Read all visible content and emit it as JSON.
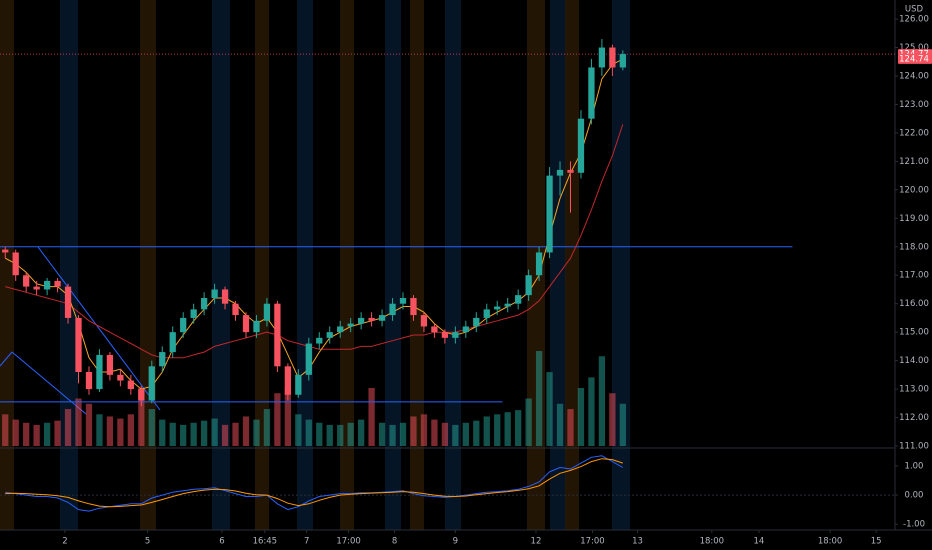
{
  "chart_data": {
    "type": "candlestick",
    "currency": "USD",
    "up_color": "#26a69a",
    "down_color": "#f7525f",
    "open": [
      117.9,
      117.8,
      117.0,
      116.6,
      116.5,
      116.8,
      116.6,
      115.5,
      113.6,
      113.0,
      114.2,
      113.5,
      113.3,
      113.0,
      112.6,
      113.8,
      114.3,
      115.0,
      115.5,
      115.8,
      116.2,
      116.5,
      116.0,
      115.6,
      115.0,
      115.4,
      116.0,
      113.8,
      112.8,
      113.5,
      114.6,
      114.8,
      115.0,
      115.2,
      115.3,
      115.5,
      115.4,
      115.6,
      116.0,
      116.2,
      115.6,
      115.2,
      115.0,
      114.8,
      115.0,
      115.2,
      115.5,
      115.8,
      115.9,
      116.0,
      116.3,
      117.0,
      117.8,
      120.5,
      120.7,
      120.6,
      122.5,
      124.3,
      125.0,
      124.3
    ],
    "high": [
      118.0,
      117.9,
      117.1,
      116.8,
      116.9,
      116.9,
      116.7,
      115.6,
      113.8,
      114.4,
      114.3,
      113.7,
      113.5,
      113.1,
      114.0,
      114.5,
      115.2,
      115.7,
      116.0,
      116.4,
      116.7,
      116.6,
      116.1,
      115.7,
      115.6,
      116.2,
      116.1,
      113.9,
      113.7,
      114.8,
      115.0,
      115.2,
      115.4,
      115.5,
      115.7,
      115.7,
      115.8,
      116.2,
      116.4,
      116.3,
      115.7,
      115.3,
      115.1,
      115.2,
      115.4,
      115.7,
      116.0,
      116.1,
      116.2,
      116.5,
      117.2,
      118.0,
      120.8,
      121.0,
      121.0,
      122.8,
      124.6,
      125.3,
      125.1,
      124.9
    ],
    "low": [
      117.6,
      116.8,
      116.4,
      116.3,
      116.3,
      116.4,
      115.3,
      113.2,
      112.8,
      112.9,
      113.3,
      113.1,
      112.8,
      112.4,
      112.5,
      113.6,
      114.1,
      114.8,
      115.3,
      115.6,
      116.0,
      115.8,
      115.4,
      114.8,
      114.8,
      115.2,
      113.6,
      112.6,
      112.7,
      113.3,
      114.4,
      114.6,
      114.8,
      115.0,
      115.1,
      115.2,
      115.2,
      115.4,
      115.8,
      115.4,
      115.0,
      114.8,
      114.6,
      114.6,
      114.8,
      115.0,
      115.3,
      115.6,
      115.7,
      115.8,
      116.1,
      116.8,
      117.6,
      119.8,
      119.2,
      120.4,
      122.3,
      124.0,
      124.0,
      124.2
    ],
    "close": [
      117.8,
      117.0,
      116.6,
      116.5,
      116.8,
      116.6,
      115.5,
      113.6,
      113.0,
      114.2,
      113.5,
      113.3,
      113.0,
      112.6,
      113.8,
      114.3,
      115.0,
      115.5,
      115.8,
      116.2,
      116.5,
      116.0,
      115.6,
      115.0,
      115.4,
      116.0,
      113.8,
      112.8,
      113.5,
      114.6,
      114.8,
      115.0,
      115.2,
      115.3,
      115.5,
      115.4,
      115.6,
      116.0,
      116.2,
      115.6,
      115.2,
      115.0,
      114.8,
      115.0,
      115.2,
      115.5,
      115.8,
      115.9,
      116.0,
      116.3,
      117.0,
      117.8,
      120.5,
      120.7,
      120.6,
      122.5,
      124.3,
      125.0,
      124.3,
      124.77
    ],
    "volume": [
      30,
      25,
      22,
      20,
      22,
      24,
      35,
      45,
      40,
      30,
      28,
      26,
      30,
      55,
      35,
      25,
      22,
      20,
      22,
      24,
      26,
      20,
      22,
      28,
      25,
      35,
      50,
      55,
      30,
      25,
      22,
      20,
      20,
      22,
      25,
      55,
      22,
      20,
      22,
      28,
      30,
      25,
      22,
      20,
      22,
      24,
      28,
      30,
      32,
      34,
      45,
      90,
      70,
      40,
      35,
      55,
      65,
      85,
      50,
      40
    ],
    "ma_fast": {
      "color": "#f5a623",
      "values": [
        117.6,
        117.4,
        117.1,
        116.7,
        116.6,
        116.6,
        116.3,
        115.3,
        114.1,
        113.6,
        113.6,
        113.7,
        113.3,
        113.0,
        113.1,
        113.6,
        114.4,
        114.9,
        115.4,
        115.8,
        116.2,
        116.2,
        116.0,
        115.6,
        115.3,
        115.5,
        115.0,
        114.2,
        113.4,
        113.7,
        114.3,
        114.8,
        115.0,
        115.2,
        115.3,
        115.4,
        115.5,
        115.7,
        115.9,
        115.9,
        115.7,
        115.3,
        115.0,
        114.9,
        115.0,
        115.2,
        115.5,
        115.7,
        115.9,
        116.1,
        116.4,
        117.0,
        118.4,
        119.7,
        120.6,
        121.3,
        122.5,
        123.9,
        124.4,
        124.6
      ]
    },
    "ma_slow": {
      "color": "#c0282c",
      "values": [
        116.6,
        116.5,
        116.4,
        116.3,
        116.2,
        116.1,
        116.0,
        115.7,
        115.4,
        115.2,
        115.0,
        114.8,
        114.6,
        114.4,
        114.2,
        114.1,
        114.1,
        114.1,
        114.2,
        114.3,
        114.5,
        114.6,
        114.7,
        114.8,
        114.9,
        115.0,
        114.9,
        114.7,
        114.6,
        114.5,
        114.4,
        114.4,
        114.4,
        114.4,
        114.5,
        114.5,
        114.6,
        114.7,
        114.8,
        114.9,
        114.9,
        115.0,
        115.0,
        115.0,
        115.1,
        115.2,
        115.3,
        115.4,
        115.5,
        115.6,
        115.8,
        116.1,
        116.6,
        117.1,
        117.6,
        118.4,
        119.3,
        120.3,
        121.2,
        122.3
      ]
    },
    "levels": [
      {
        "value": 118,
        "end": 75.2,
        "color": "#2962ff"
      },
      {
        "value": 112.55,
        "end": 47.5,
        "color": "#2962ff"
      }
    ],
    "xlim": [
      -0.5,
      85
    ],
    "xticks": [
      {
        "value": 5.7,
        "label": "2"
      },
      {
        "value": 13.6,
        "label": "5"
      },
      {
        "value": 20.7,
        "label": "6"
      },
      {
        "value": 24.8,
        "label": "16:45"
      },
      {
        "value": 28.8,
        "label": "7"
      },
      {
        "value": 32.8,
        "label": "17:00"
      },
      {
        "value": 37.2,
        "label": "8"
      },
      {
        "value": 43,
        "label": "9"
      },
      {
        "value": 50.7,
        "label": "12"
      },
      {
        "value": 56.1,
        "label": "17:00"
      },
      {
        "value": 60.4,
        "label": "13"
      },
      {
        "value": 67.5,
        "label": "18:00"
      },
      {
        "value": 72,
        "label": "14"
      },
      {
        "value": 78.8,
        "label": "18:00"
      },
      {
        "value": 83.2,
        "label": "15"
      }
    ],
    "ylim": [
      110.93,
      126.67
    ],
    "yticks": [
      {
        "value": 111,
        "label": "111.00"
      },
      {
        "value": 112,
        "label": "112.00"
      },
      {
        "value": 113,
        "label": "113.00"
      },
      {
        "value": 114,
        "label": "114.00"
      },
      {
        "value": 115,
        "label": "115.00"
      },
      {
        "value": 116,
        "label": "116.00"
      },
      {
        "value": 117,
        "label": "117.00"
      },
      {
        "value": 118,
        "label": "118.00"
      },
      {
        "value": 119,
        "label": "119.00"
      },
      {
        "value": 120,
        "label": "120.00"
      },
      {
        "value": 121,
        "label": "121.00"
      },
      {
        "value": 122,
        "label": "122.00"
      },
      {
        "value": 123,
        "label": "123.00"
      },
      {
        "value": 124,
        "label": "124.00"
      },
      {
        "value": 125,
        "label": "125.00"
      },
      {
        "value": 126,
        "label": "126.00"
      }
    ],
    "price_labels": [
      {
        "value": 124.77,
        "label": "124.77"
      },
      {
        "value": 124.74,
        "label": "124.74"
      }
    ],
    "indicator": {
      "type": "macd",
      "ylim": [
        -1.2,
        1.55
      ],
      "yticks": [
        {
          "value": -1,
          "label": "-1.00"
        },
        {
          "value": 0,
          "label": "0.00"
        },
        {
          "value": 1,
          "label": "1.00"
        }
      ],
      "macd": {
        "color": "#2962ff",
        "values": [
          0.1,
          0.05,
          0.0,
          -0.05,
          -0.05,
          -0.1,
          -0.25,
          -0.5,
          -0.55,
          -0.45,
          -0.4,
          -0.35,
          -0.3,
          -0.3,
          -0.1,
          0.0,
          0.1,
          0.15,
          0.2,
          0.22,
          0.25,
          0.15,
          0.05,
          -0.05,
          -0.05,
          0.0,
          -0.3,
          -0.5,
          -0.4,
          -0.2,
          -0.05,
          0.0,
          0.05,
          0.05,
          0.08,
          0.08,
          0.1,
          0.12,
          0.15,
          0.05,
          -0.02,
          -0.05,
          -0.08,
          -0.05,
          0.0,
          0.05,
          0.1,
          0.12,
          0.15,
          0.2,
          0.3,
          0.45,
          0.8,
          0.95,
          0.9,
          1.1,
          1.3,
          1.35,
          1.15,
          0.95
        ]
      },
      "signal": {
        "color": "#ff9800",
        "values": [
          0.05,
          0.06,
          0.05,
          0.03,
          0.01,
          -0.02,
          -0.08,
          -0.2,
          -0.3,
          -0.38,
          -0.4,
          -0.39,
          -0.36,
          -0.34,
          -0.25,
          -0.15,
          -0.05,
          0.05,
          0.12,
          0.17,
          0.2,
          0.19,
          0.14,
          0.06,
          0.01,
          0.0,
          -0.12,
          -0.28,
          -0.36,
          -0.3,
          -0.18,
          -0.08,
          0.0,
          0.03,
          0.05,
          0.07,
          0.08,
          0.1,
          0.12,
          0.1,
          0.05,
          0.0,
          -0.04,
          -0.05,
          -0.03,
          0.01,
          0.05,
          0.09,
          0.12,
          0.16,
          0.22,
          0.32,
          0.55,
          0.75,
          0.85,
          0.98,
          1.15,
          1.25,
          1.22,
          1.1
        ]
      }
    }
  }
}
